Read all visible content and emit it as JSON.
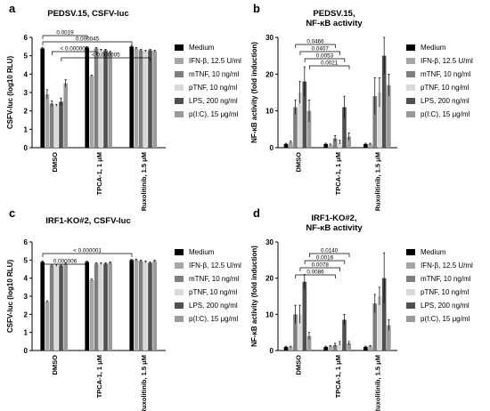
{
  "legend_entries": [
    "Medium",
    "IFN-β, 12.5 U/ml",
    "mTNF, 10 ng/ml",
    "pTNF, 10 ng/ml",
    "LPS, 200 ng/ml",
    "p(I:C), 15 μg/ml"
  ],
  "colors": {
    "series": [
      "#000000",
      "#a6a6a6",
      "#7f7f7f",
      "#d9d9d9",
      "#505050",
      "#9a9a9a"
    ],
    "axis": "#000000",
    "errorbar": "#000000"
  },
  "chart_data": [
    {
      "panel": "a",
      "type": "bar",
      "title": "PEDSV.15, CSFV-luc",
      "ylabel": "CSFV-luc (log10 RLU)",
      "ylim": [
        0,
        6
      ],
      "yticks": [
        "0",
        "1",
        "2",
        "3",
        "4",
        "5",
        "6"
      ],
      "categories": [
        "DMSO",
        "TPCA-1, 1 μM",
        "Ruxolitinib, 1.5 μM"
      ],
      "series": [
        {
          "name": "Medium",
          "values": [
            5.4,
            5.45,
            5.5
          ],
          "errors": [
            0.05,
            0.05,
            0.05
          ]
        },
        {
          "name": "IFN-β, 12.5 U/ml",
          "values": [
            2.9,
            3.9,
            5.4
          ],
          "errors": [
            0.25,
            0.05,
            0.05
          ]
        },
        {
          "name": "mTNF, 10 ng/ml",
          "values": [
            2.4,
            5.4,
            5.3
          ],
          "errors": [
            0.15,
            0.05,
            0.05
          ]
        },
        {
          "name": "pTNF, 10 ng/ml",
          "values": [
            2.3,
            5.3,
            5.25
          ],
          "errors": [
            0.05,
            0.05,
            0.05
          ]
        },
        {
          "name": "LPS, 200 ng/ml",
          "values": [
            2.5,
            5.3,
            5.3
          ],
          "errors": [
            0.2,
            0.05,
            0.05
          ]
        },
        {
          "name": "p(I:C), 15 μg/ml",
          "values": [
            3.5,
            5.2,
            5.25
          ],
          "errors": [
            0.2,
            0.05,
            0.05
          ]
        }
      ],
      "annotations": [
        "0.0019",
        "0.000045",
        "< 0.000005",
        "< 0.000005"
      ]
    },
    {
      "panel": "b",
      "type": "bar",
      "title": "PEDSV.15,\nNF-κB activity",
      "ylabel": "NF-κB activity (fold induction)",
      "ylim": [
        0,
        30
      ],
      "yticks": [
        "0",
        "10",
        "20",
        "30"
      ],
      "categories": [
        "DMSO",
        "TPCA-1, 1 μM",
        "Ruxolitinib, 1.5 μM"
      ],
      "series": [
        {
          "name": "Medium",
          "values": [
            1,
            1,
            1
          ],
          "errors": [
            0.2,
            0.2,
            0.2
          ]
        },
        {
          "name": "IFN-β, 12.5 U/ml",
          "values": [
            1.5,
            0.8,
            1.0
          ],
          "errors": [
            0.3,
            0.2,
            0.2
          ]
        },
        {
          "name": "mTNF, 10 ng/ml",
          "values": [
            11,
            2.5,
            14
          ],
          "errors": [
            2,
            0.8,
            5
          ]
        },
        {
          "name": "pTNF, 10 ng/ml",
          "values": [
            15,
            1.5,
            15
          ],
          "errors": [
            3,
            0.5,
            4
          ]
        },
        {
          "name": "LPS, 200 ng/ml",
          "values": [
            18,
            11,
            25
          ],
          "errors": [
            4,
            3,
            5
          ]
        },
        {
          "name": "p(I:C), 15 μg/ml",
          "values": [
            10,
            3,
            17
          ],
          "errors": [
            3,
            1,
            3
          ]
        }
      ],
      "annotations": [
        "0.0466",
        "0.0407",
        "0.0053",
        "0.0021"
      ]
    },
    {
      "panel": "c",
      "type": "bar",
      "title": "IRF1-KO#2, CSFV-luc",
      "ylabel": "CSFV-luc (log10 RLU)",
      "ylim": [
        0,
        6
      ],
      "yticks": [
        "0",
        "1",
        "2",
        "3",
        "4",
        "5",
        "6"
      ],
      "categories": [
        "DMSO",
        "TPCA-1, 1 μM",
        "Ruxolitinib, 1.5 μM"
      ],
      "series": [
        {
          "name": "Medium",
          "values": [
            4.9,
            4.9,
            5.0
          ],
          "errors": [
            0.05,
            0.05,
            0.05
          ]
        },
        {
          "name": "IFN-β, 12.5 U/ml",
          "values": [
            2.7,
            3.9,
            5.0
          ],
          "errors": [
            0.05,
            0.05,
            0.05
          ]
        },
        {
          "name": "mTNF, 10 ng/ml",
          "values": [
            4.7,
            4.8,
            4.95
          ],
          "errors": [
            0.05,
            0.05,
            0.05
          ]
        },
        {
          "name": "pTNF, 10 ng/ml",
          "values": [
            4.7,
            4.8,
            4.9
          ],
          "errors": [
            0.05,
            0.05,
            0.05
          ]
        },
        {
          "name": "LPS, 200 ng/ml",
          "values": [
            4.7,
            4.8,
            4.85
          ],
          "errors": [
            0.05,
            0.05,
            0.05
          ]
        },
        {
          "name": "p(I:C), 15 μg/ml",
          "values": [
            4.8,
            4.85,
            4.95
          ],
          "errors": [
            0.05,
            0.05,
            0.05
          ]
        }
      ],
      "annotations": [
        "< 0.000001",
        "0.000006"
      ]
    },
    {
      "panel": "d",
      "type": "bar",
      "title": "IRF1-KO#2,\nNF-κB activity",
      "ylabel": "NF-κB activity (fold induction)",
      "ylim": [
        0,
        30
      ],
      "yticks": [
        "0",
        "10",
        "20",
        "30"
      ],
      "categories": [
        "DMSO",
        "TPCA-1, 1 μM",
        "Ruxolitinib, 1.5 μM"
      ],
      "series": [
        {
          "name": "Medium",
          "values": [
            1,
            1,
            1
          ],
          "errors": [
            0.2,
            0.2,
            0.2
          ]
        },
        {
          "name": "IFN-β, 12.5 U/ml",
          "values": [
            1,
            1.2,
            1.2
          ],
          "errors": [
            0.2,
            0.2,
            0.2
          ]
        },
        {
          "name": "mTNF, 10 ng/ml",
          "values": [
            10,
            1.5,
            13
          ],
          "errors": [
            2.5,
            0.5,
            2.5
          ]
        },
        {
          "name": "pTNF, 10 ng/ml",
          "values": [
            10,
            2,
            15
          ],
          "errors": [
            2.5,
            0.5,
            2.5
          ]
        },
        {
          "name": "LPS, 200 ng/ml",
          "values": [
            19,
            8.5,
            20
          ],
          "errors": [
            2,
            1.5,
            7
          ]
        },
        {
          "name": "p(I:C), 15 μg/ml",
          "values": [
            4,
            2,
            7
          ],
          "errors": [
            1,
            0.5,
            1.5
          ]
        }
      ],
      "annotations": [
        "0.0140",
        "0.0016",
        "0.0078",
        "0.0086"
      ]
    }
  ]
}
